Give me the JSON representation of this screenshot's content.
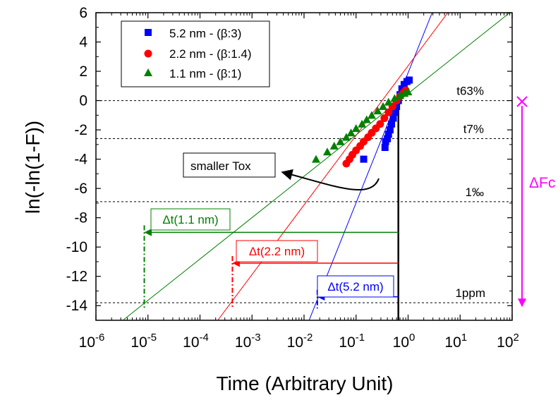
{
  "chart_data": {
    "type": "scatter",
    "xlabel": "Time (Arbitrary Unit)",
    "ylabel": "ln(-ln(1-F))",
    "xscale": "log",
    "xlim": [
      1e-06,
      100
    ],
    "ylim": [
      -15,
      6
    ],
    "x_ticks": [
      {
        "value": 1e-06,
        "base": "10",
        "exp": "-6"
      },
      {
        "value": 1e-05,
        "base": "10",
        "exp": "-5"
      },
      {
        "value": 0.0001,
        "base": "10",
        "exp": "-4"
      },
      {
        "value": 0.001,
        "base": "10",
        "exp": "-3"
      },
      {
        "value": 0.01,
        "base": "10",
        "exp": "-2"
      },
      {
        "value": 0.1,
        "base": "10",
        "exp": "-1"
      },
      {
        "value": 1,
        "base": "10",
        "exp": "0"
      },
      {
        "value": 10,
        "base": "10",
        "exp": "1"
      },
      {
        "value": 100,
        "base": "10",
        "exp": "2"
      }
    ],
    "y_ticks": [
      6,
      4,
      2,
      0,
      -2,
      -4,
      -6,
      -8,
      -10,
      -12,
      -14
    ],
    "legend_position": "top-left",
    "series": [
      {
        "name": "5.2 nm - (β:3)",
        "color": "#0000ff",
        "marker": "square",
        "beta": 3,
        "fit_line": [
          [
            0.0125,
            -15
          ],
          [
            2.9,
            6
          ]
        ],
        "points": [
          [
            0.14,
            -4
          ],
          [
            0.36,
            -3.2
          ],
          [
            0.37,
            -2.8
          ],
          [
            0.4,
            -2.6
          ],
          [
            0.42,
            -2.3
          ],
          [
            0.45,
            -2.0
          ],
          [
            0.48,
            -1.6
          ],
          [
            0.52,
            -1.2
          ],
          [
            0.56,
            -0.8
          ],
          [
            0.6,
            -0.4
          ],
          [
            0.65,
            0.0
          ],
          [
            0.7,
            0.4
          ],
          [
            0.76,
            0.8
          ],
          [
            0.84,
            1.1
          ],
          [
            0.95,
            1.3
          ],
          [
            1.05,
            1.4
          ]
        ]
      },
      {
        "name": "2.2 nm - (β:1.4)",
        "color": "#ff0000",
        "marker": "circle",
        "beta": 1.4,
        "fit_line": [
          [
            0.00022,
            -15
          ],
          [
            5.8,
            6
          ]
        ],
        "points": [
          [
            0.065,
            -4.3
          ],
          [
            0.075,
            -4.0
          ],
          [
            0.085,
            -3.7
          ],
          [
            0.1,
            -3.4
          ],
          [
            0.12,
            -3.1
          ],
          [
            0.14,
            -2.8
          ],
          [
            0.17,
            -2.5
          ],
          [
            0.2,
            -2.2
          ],
          [
            0.24,
            -1.9
          ],
          [
            0.29,
            -1.6
          ],
          [
            0.35,
            -1.2
          ],
          [
            0.42,
            -0.8
          ],
          [
            0.5,
            -0.4
          ],
          [
            0.6,
            0.0
          ],
          [
            0.7,
            0.3
          ],
          [
            0.8,
            0.5
          ],
          [
            0.9,
            0.7
          ]
        ]
      },
      {
        "name": "1.1 nm - (β:1)",
        "color": "#008000",
        "marker": "triangle",
        "beta": 1,
        "fit_line": [
          [
            3.3e-06,
            -15
          ],
          [
            90,
            6
          ]
        ],
        "points": [
          [
            0.017,
            -4.0
          ],
          [
            0.028,
            -3.5
          ],
          [
            0.038,
            -3.1
          ],
          [
            0.05,
            -2.8
          ],
          [
            0.065,
            -2.5
          ],
          [
            0.08,
            -2.2
          ],
          [
            0.1,
            -1.9
          ],
          [
            0.13,
            -1.6
          ],
          [
            0.16,
            -1.3
          ],
          [
            0.2,
            -1.0
          ],
          [
            0.26,
            -0.7
          ],
          [
            0.33,
            -0.4
          ],
          [
            0.42,
            -0.1
          ],
          [
            0.55,
            0.15
          ],
          [
            0.7,
            0.35
          ],
          [
            0.85,
            0.5
          ],
          [
            1.0,
            0.6
          ]
        ]
      }
    ],
    "reference_lines": [
      {
        "label": "t63%",
        "y": 0
      },
      {
        "label": "t7%",
        "y": -2.6
      },
      {
        "label": "1‰",
        "y": -6.9
      },
      {
        "label": "1ppm",
        "y": -13.8
      }
    ],
    "vertical_marker_x": 0.65,
    "delta_t": [
      {
        "label": "Δt(1.1 nm)",
        "color": "#008000",
        "y": -9.0,
        "x_start": 0.65,
        "x_end": 8.5e-06
      },
      {
        "label": "Δt(2.2 nm)",
        "color": "#ff0000",
        "y": -11.1,
        "x_start": 0.65,
        "x_end": 0.00042
      },
      {
        "label": "Δt(5.2 nm)",
        "color": "#0000ff",
        "y": -13.4,
        "x_start": 0.65,
        "x_end": 0.018
      }
    ],
    "annotations": [
      {
        "text": "smaller Tox"
      },
      {
        "text": "ΔFc",
        "color": "#ff00ff",
        "y_from": 0,
        "y_to": -14
      }
    ]
  }
}
